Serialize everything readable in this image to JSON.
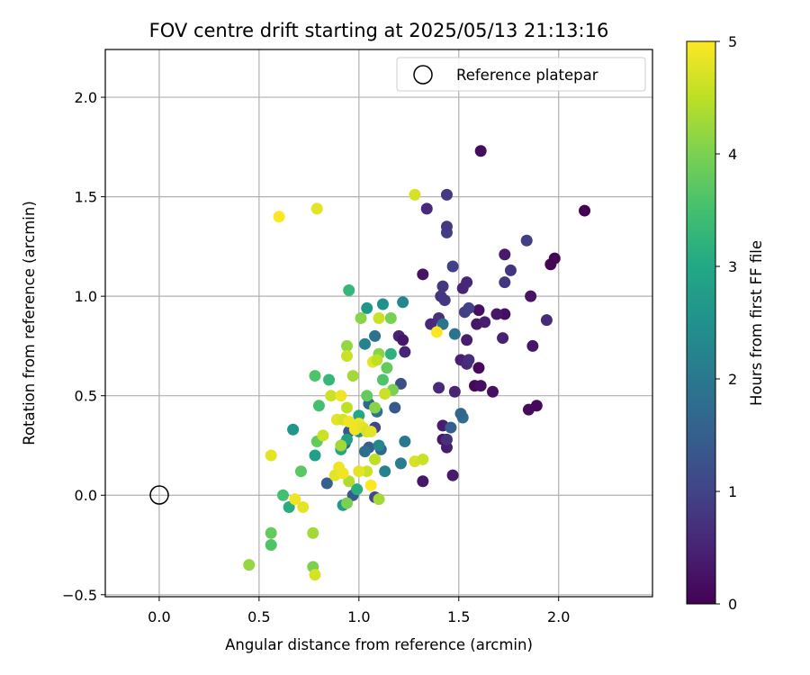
{
  "chart_data": {
    "type": "scatter",
    "title": "FOV centre drift starting at 2025/05/13 21:13:16",
    "xlabel": "Angular distance from reference (arcmin)",
    "ylabel": "Rotation from reference (arcmin)",
    "xlim": [
      -0.27,
      2.47
    ],
    "ylim": [
      -0.51,
      2.24
    ],
    "xticks": [
      0.0,
      0.5,
      1.0,
      1.5,
      2.0
    ],
    "xtick_labels": [
      "0.0",
      "0.5",
      "1.0",
      "1.5",
      "2.0"
    ],
    "yticks": [
      -0.5,
      0.0,
      0.5,
      1.0,
      1.5,
      2.0
    ],
    "ytick_labels": [
      "−0.5",
      "0.0",
      "0.5",
      "1.0",
      "1.5",
      "2.0"
    ],
    "grid": true,
    "legend": {
      "position": "top-right",
      "entries": [
        "Reference platepar"
      ]
    },
    "reference_point": {
      "x": 0.0,
      "y": 0.0
    },
    "colorbar": {
      "label": "Hours from first FF file",
      "range": [
        0,
        5
      ],
      "ticks": [
        0,
        1,
        2,
        3,
        4,
        5
      ],
      "tick_labels": [
        "0",
        "1",
        "2",
        "3",
        "4",
        "5"
      ],
      "colormap": "viridis"
    },
    "series": [
      {
        "columns": [
          "x",
          "y",
          "hours"
        ],
        "points": [
          [
            2.13,
            1.43,
            0.0
          ],
          [
            1.98,
            1.19,
            0.05
          ],
          [
            1.96,
            1.16,
            0.05
          ],
          [
            1.89,
            0.45,
            0.1
          ],
          [
            1.85,
            0.43,
            0.15
          ],
          [
            1.86,
            1.0,
            0.25
          ],
          [
            1.87,
            0.75,
            0.3
          ],
          [
            1.73,
            1.21,
            0.35
          ],
          [
            1.61,
            1.73,
            0.15
          ],
          [
            1.73,
            0.91,
            0.2
          ],
          [
            1.69,
            0.91,
            0.3
          ],
          [
            1.67,
            0.52,
            0.2
          ],
          [
            1.6,
            0.64,
            0.1
          ],
          [
            1.6,
            0.93,
            0.2
          ],
          [
            1.58,
            0.55,
            0.1
          ],
          [
            1.61,
            0.55,
            0.2
          ],
          [
            1.59,
            0.86,
            0.3
          ],
          [
            1.63,
            0.87,
            0.4
          ],
          [
            1.72,
            0.79,
            0.45
          ],
          [
            1.54,
            0.78,
            0.4
          ],
          [
            1.51,
            0.68,
            0.45
          ],
          [
            1.54,
            0.66,
            0.6
          ],
          [
            1.55,
            0.68,
            0.65
          ],
          [
            1.52,
            1.04,
            0.5
          ],
          [
            1.54,
            1.07,
            0.55
          ],
          [
            1.48,
            0.52,
            0.5
          ],
          [
            1.47,
            0.1,
            0.35
          ],
          [
            1.44,
            0.24,
            0.4
          ],
          [
            1.42,
            0.28,
            0.3
          ],
          [
            1.42,
            0.35,
            0.4
          ],
          [
            1.4,
            0.54,
            0.6
          ],
          [
            1.32,
            0.07,
            0.3
          ],
          [
            1.32,
            1.11,
            0.25
          ],
          [
            1.36,
            0.86,
            0.6
          ],
          [
            1.4,
            0.89,
            0.7
          ],
          [
            1.41,
            1.0,
            0.75
          ],
          [
            1.43,
            0.98,
            0.8
          ],
          [
            1.42,
            1.05,
            0.8
          ],
          [
            1.44,
            1.32,
            0.9
          ],
          [
            1.44,
            1.35,
            0.85
          ],
          [
            1.44,
            1.51,
            0.85
          ],
          [
            1.34,
            1.44,
            0.6
          ],
          [
            1.47,
            1.15,
            0.95
          ],
          [
            1.53,
            0.92,
            0.9
          ],
          [
            1.55,
            0.94,
            0.95
          ],
          [
            1.44,
            0.28,
            0.7
          ],
          [
            1.76,
            1.13,
            0.75
          ],
          [
            1.73,
            1.07,
            0.8
          ],
          [
            1.84,
            1.28,
            0.9
          ],
          [
            1.94,
            0.88,
            0.6
          ],
          [
            1.2,
            0.8,
            0.5
          ],
          [
            1.22,
            0.78,
            0.3
          ],
          [
            1.23,
            0.72,
            0.5
          ],
          [
            1.21,
            0.56,
            1.2
          ],
          [
            1.18,
            0.44,
            1.4
          ],
          [
            1.08,
            0.34,
            1.0
          ],
          [
            1.08,
            -0.01,
            1.1
          ],
          [
            1.05,
            0.24,
            1.5
          ],
          [
            1.11,
            0.23,
            1.6
          ],
          [
            1.03,
            0.22,
            1.8
          ],
          [
            1.46,
            0.34,
            1.5
          ],
          [
            1.52,
            0.39,
            1.8
          ],
          [
            1.51,
            0.41,
            1.7
          ],
          [
            1.48,
            0.81,
            1.9
          ],
          [
            1.42,
            0.86,
            1.9
          ],
          [
            0.93,
            0.26,
            1.6
          ],
          [
            0.97,
            0.0,
            1.4
          ],
          [
            0.84,
            0.06,
            1.5
          ],
          [
            0.95,
            0.32,
            1.4
          ],
          [
            1.05,
            0.46,
            1.7
          ],
          [
            1.09,
            0.42,
            1.9
          ],
          [
            1.08,
            0.8,
            1.9
          ],
          [
            1.03,
            0.76,
            2.2
          ],
          [
            1.23,
            0.27,
            2.0
          ],
          [
            1.21,
            0.16,
            2.1
          ],
          [
            1.13,
            0.12,
            2.2
          ],
          [
            1.1,
            0.25,
            2.3
          ],
          [
            1.04,
            0.94,
            2.6
          ],
          [
            1.22,
            0.97,
            2.3
          ],
          [
            1.12,
            0.96,
            2.5
          ],
          [
            1.0,
            0.32,
            2.6
          ],
          [
            1.0,
            0.4,
            3.0
          ],
          [
            0.91,
            0.23,
            3.0
          ],
          [
            0.94,
            0.28,
            2.8
          ],
          [
            0.78,
            0.2,
            2.8
          ],
          [
            0.67,
            0.33,
            2.6
          ],
          [
            0.92,
            -0.05,
            2.7
          ],
          [
            0.99,
            0.03,
            3.1
          ],
          [
            1.16,
            0.71,
            3.2
          ],
          [
            0.85,
            0.58,
            3.3
          ],
          [
            0.65,
            -0.06,
            3.1
          ],
          [
            0.62,
            0.0,
            3.5
          ],
          [
            0.56,
            -0.25,
            3.6
          ],
          [
            0.56,
            -0.19,
            3.8
          ],
          [
            0.71,
            0.12,
            3.7
          ],
          [
            0.79,
            0.27,
            3.8
          ],
          [
            0.8,
            0.45,
            3.5
          ],
          [
            0.78,
            0.6,
            3.6
          ],
          [
            0.95,
            1.03,
            3.3
          ],
          [
            1.12,
            0.58,
            3.6
          ],
          [
            1.14,
            0.64,
            3.8
          ],
          [
            1.17,
            0.53,
            4.0
          ],
          [
            1.04,
            0.5,
            3.8
          ],
          [
            1.1,
            0.71,
            4.1
          ],
          [
            1.16,
            0.89,
            4.0
          ],
          [
            0.94,
            0.75,
            4.2
          ],
          [
            0.97,
            0.6,
            4.3
          ],
          [
            1.01,
            0.89,
            4.1
          ],
          [
            1.08,
            0.44,
            4.1
          ],
          [
            0.94,
            -0.04,
            4.0
          ],
          [
            0.95,
            0.07,
            4.4
          ],
          [
            1.1,
            -0.02,
            4.3
          ],
          [
            0.77,
            -0.36,
            4.0
          ],
          [
            0.77,
            -0.19,
            4.3
          ],
          [
            0.45,
            -0.35,
            4.2
          ],
          [
            0.91,
            0.25,
            4.3
          ],
          [
            0.94,
            0.44,
            4.5
          ],
          [
            0.86,
            0.5,
            4.6
          ],
          [
            0.89,
            0.38,
            4.8
          ],
          [
            0.91,
            0.5,
            4.9
          ],
          [
            0.92,
            0.38,
            4.7
          ],
          [
            0.95,
            0.37,
            4.9
          ],
          [
            0.98,
            0.33,
            4.9
          ],
          [
            1.0,
            0.36,
            4.9
          ],
          [
            1.02,
            0.34,
            4.8
          ],
          [
            1.04,
            0.32,
            4.7
          ],
          [
            1.06,
            0.32,
            4.8
          ],
          [
            1.07,
            0.67,
            4.8
          ],
          [
            1.09,
            0.68,
            4.5
          ],
          [
            1.13,
            0.51,
            4.6
          ],
          [
            1.1,
            0.89,
            4.6
          ],
          [
            0.94,
            0.7,
            4.6
          ],
          [
            1.08,
            0.18,
            4.5
          ],
          [
            1.04,
            0.12,
            4.6
          ],
          [
            1.0,
            0.12,
            4.8
          ],
          [
            0.9,
            0.14,
            4.9
          ],
          [
            0.88,
            0.1,
            4.8
          ],
          [
            0.92,
            0.11,
            4.9
          ],
          [
            0.82,
            0.3,
            4.6
          ],
          [
            0.56,
            0.2,
            4.8
          ],
          [
            0.68,
            -0.02,
            4.9
          ],
          [
            0.72,
            -0.06,
            4.8
          ],
          [
            0.78,
            -0.4,
            4.7
          ],
          [
            1.06,
            0.05,
            5.0
          ],
          [
            1.28,
            0.17,
            4.7
          ],
          [
            1.32,
            0.18,
            4.6
          ],
          [
            1.39,
            0.82,
            5.0
          ],
          [
            0.6,
            1.4,
            5.0
          ],
          [
            0.79,
            1.44,
            4.8
          ],
          [
            1.28,
            1.51,
            4.7
          ]
        ]
      }
    ]
  }
}
